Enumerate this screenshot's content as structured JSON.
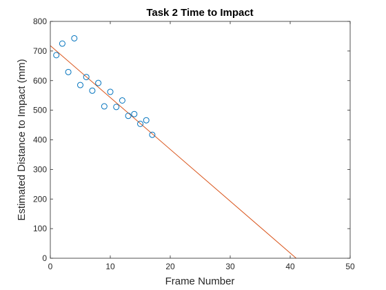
{
  "chart_data": {
    "type": "scatter",
    "title": "Task 2 Time to Impact",
    "xlabel": "Frame Number",
    "ylabel": "Estimated Distance to Impact (mm)",
    "xlim": [
      0,
      50
    ],
    "ylim": [
      0,
      800
    ],
    "xticks": [
      0,
      10,
      20,
      30,
      40,
      50
    ],
    "yticks": [
      0,
      100,
      200,
      300,
      400,
      500,
      600,
      700,
      800
    ],
    "grid": false,
    "legend": "none",
    "series": [
      {
        "kind": "scatter",
        "marker": "circle-open",
        "color": "#0072BD",
        "x": [
          1,
          2,
          3,
          4,
          5,
          6,
          7,
          8,
          9,
          10,
          11,
          12,
          13,
          14,
          15,
          16,
          17
        ],
        "y": [
          686,
          725,
          629,
          743,
          585,
          612,
          566,
          592,
          513,
          562,
          511,
          533,
          481,
          487,
          454,
          466,
          417
        ]
      },
      {
        "kind": "line",
        "color": "#D95319",
        "x": [
          0,
          41
        ],
        "y": [
          718,
          0
        ]
      }
    ]
  }
}
